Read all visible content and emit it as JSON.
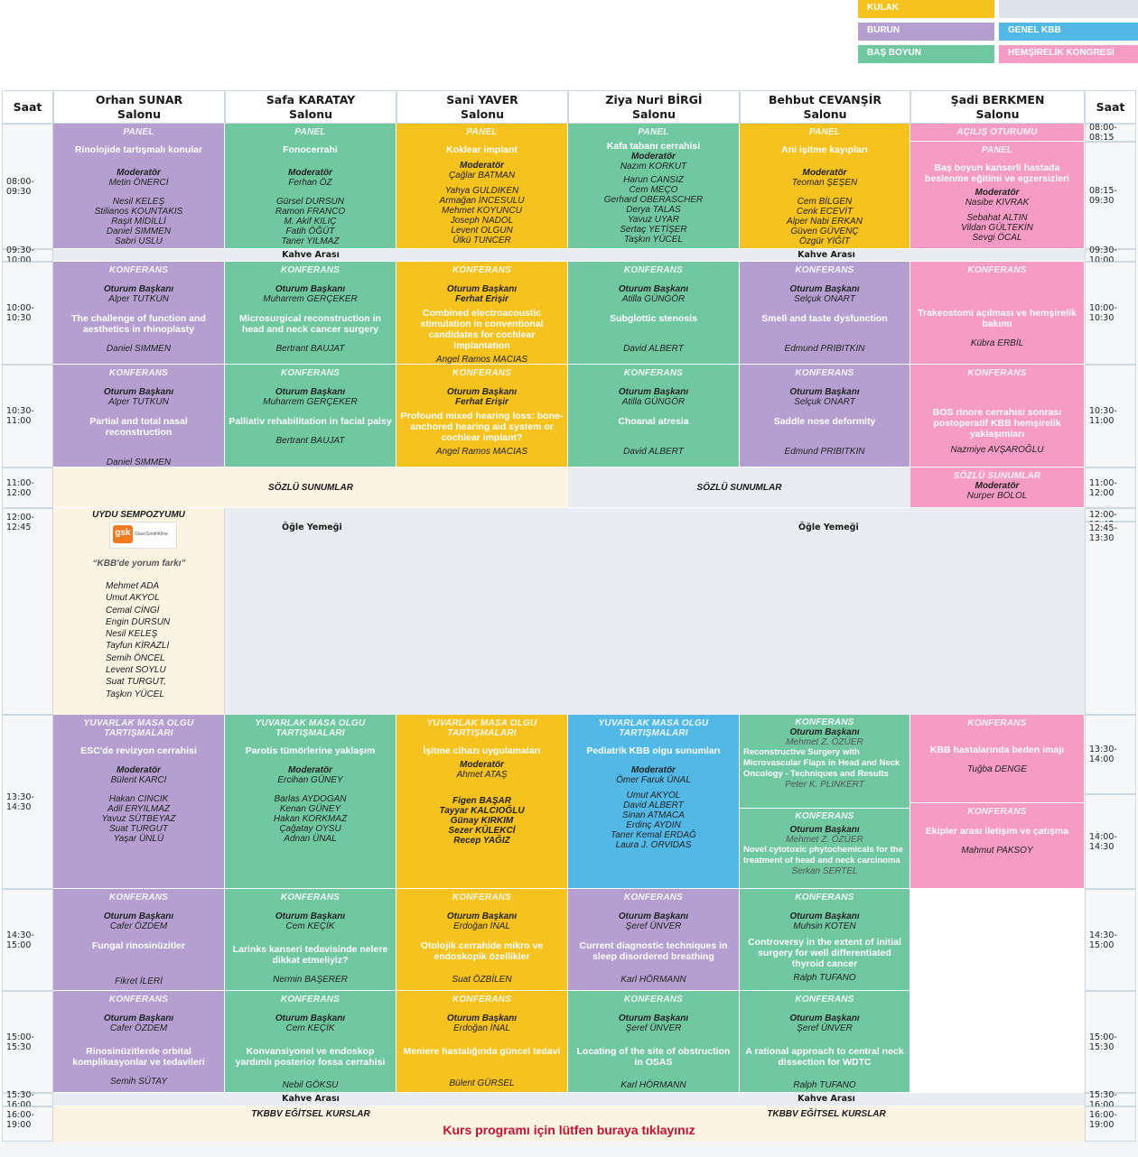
{
  "legend": {
    "kulak": "KULAK",
    "burun": "BURUN",
    "bas_boyun": "BAŞ BOYUN",
    "genel_kbb": "GENEL KBB",
    "hemsirelik": "HEMŞİRELİK KONGRESİ",
    "colors": {
      "kulak": "#f6c21e",
      "burun": "#b59fd0",
      "bas_boyun": "#6fc8a0",
      "genel_kbb": "#52b9e6",
      "hemsirelik": "#f59bc4",
      "blank": "#dde3ea"
    }
  },
  "header": {
    "saat": "Saat",
    "halls": [
      [
        "Orhan SUNAR",
        "Salonu"
      ],
      [
        "Safa KARATAY",
        "Salonu"
      ],
      [
        "Sani YAVER",
        "Salonu"
      ],
      [
        "Ziya Nuri BİRGİ",
        "Salonu"
      ],
      [
        "Behbut CEVANŞİR",
        "Salonu"
      ],
      [
        "Şadi BERKMEN",
        "Salonu"
      ]
    ]
  },
  "times_left": [
    "08:00-09:30",
    "09:30-10:00",
    "10:00-10:30",
    "10:30-11:00",
    "11:00-12:00",
    "12:00-12:45",
    "13:30-14:30",
    "14:30-15:00",
    "15:00-15:30",
    "15:30-16:00",
    "16:00-19:00"
  ],
  "times_right": [
    "08:00-08:15",
    "08:15-09:30",
    "09:30-10:00",
    "10:00-10:30",
    "10:30-11:00",
    "11:00-12:00",
    "12:00-12:45",
    "12:45-13:30",
    "13:30-14:00",
    "14:00-14:30",
    "14:30-15:00",
    "15:00-15:30",
    "15:30-16:00",
    "16:00-19:00"
  ],
  "breaks": {
    "kahve": "Kahve Arası",
    "ogle": "Öğle Yemeği",
    "sozlu": "SÖZLÜ SUNUMLAR",
    "kurslar": "TKBBV EĞİTSEL KURSLAR",
    "kurs_link": "Kurs programı için lütfen buraya tıklayınız"
  },
  "s1": {
    "c1": {
      "tag": "PANEL",
      "title": "Rinolojide tartışmalı konular",
      "mod": "Moderatör",
      "modname": "Metin ÖNERCİ",
      "names": [
        "Nesil KELEŞ",
        "Stilianos KOUNTAKIS",
        "Raşit MİDİLLİ",
        "Daniel SIMMEN",
        "Sabri USLU"
      ]
    },
    "c2": {
      "tag": "PANEL",
      "title": "Fonocerrahi",
      "mod": "Moderatör",
      "modname": "Ferhan ÖZ",
      "names": [
        "Gürsel DURSUN",
        "Ramon FRANCO",
        "M. Akif KILIÇ",
        "Fatih ÖĞÜT",
        "Taner YILMAZ"
      ]
    },
    "c3": {
      "tag": "PANEL",
      "title": "Koklear implant",
      "mod": "Moderatör",
      "modname": "Çağlar BATMAN",
      "names": [
        "Yahya GULDIKEN",
        "Armağan İNCESULU",
        "Mehmet KOYUNCU",
        "Joseph NADOL",
        "Levent OLGUN",
        "Ülkü TUNCER"
      ]
    },
    "c4": {
      "tag": "PANEL",
      "title": "Kafa tabanı cerrahisi",
      "mod": "Moderatör",
      "names": [
        "Nazım KORKUT",
        "Harun CANSIZ",
        "Cem MEÇO",
        "Gerhard OBERASCHER",
        "Derya TALAS",
        "Yavuz UYAR",
        "Sertaç YETİŞER",
        "Taşkın YÜCEL"
      ]
    },
    "c5": {
      "tag": "PANEL",
      "title": "Ani işitme kayıpları",
      "mod": "Moderatör",
      "modname": "Teoman ŞEŞEN",
      "names": [
        "Cem BİLGEN",
        "Cenk ECEVİT",
        "Alper Nabi ERKAN",
        "Güven GÜVENÇ",
        "Özgür YİĞİT"
      ]
    },
    "c6a": {
      "tag": "AÇILIŞ OTURUMU"
    },
    "c6": {
      "tag": "PANEL",
      "title": "Baş boyun kanserli hastada beslenme eğitimi ve egzersizleri",
      "mod": "Moderatör",
      "modname": "Nasibe KIVRAK",
      "names": [
        "Sebahat ALTIN",
        "Vildan GÜLTEKİN",
        "Sevgi ÖCAL"
      ]
    }
  },
  "s2": {
    "c1": {
      "tag": "KONFERANS",
      "chair": "Oturum Başkanı",
      "chairname": "Alper TUTKUN",
      "title": "The challenge of function and aesthetics in rhinoplasty",
      "speaker": "Daniel SIMMEN"
    },
    "c2": {
      "tag": "KONFERANS",
      "chair": "Oturum Başkanı",
      "chairname": "Muharrem GERÇEKER",
      "title": "Microsurgical reconstruction in head and neck cancer surgery",
      "speaker": "Bertrant BAUJAT"
    },
    "c3": {
      "tag": "KONFERANS",
      "chair": "Oturum Başkanı",
      "chairname": "Ferhat Erişir",
      "title": "Combined electroacoustic stimulation in conventional candidates for cochlear implantation",
      "speaker": "Angel Ramos MACIAS"
    },
    "c4": {
      "tag": "KONFERANS",
      "chair": "Oturum Başkanı",
      "chairname": "Atilla GÜNGÖR",
      "title": "Subglottic stenosis",
      "speaker": "David ALBERT"
    },
    "c5": {
      "tag": "KONFERANS",
      "chair": "Oturum Başkanı",
      "chairname": "Selçuk ONART",
      "title": "Smell and taste dysfunction",
      "speaker": "Edmund PRIBITKIN"
    },
    "c6": {
      "tag": "KONFERANS",
      "title": "Trakeostomi açılması ve hemşirelik bakımı",
      "speaker": "Kübra ERBİL"
    }
  },
  "s3": {
    "c1": {
      "tag": "KONFERANS",
      "chair": "Oturum Başkanı",
      "chairname": "Alper TUTKUN",
      "title": "Partial and total nasal reconstruction",
      "speaker": "Daniel SIMMEN"
    },
    "c2": {
      "tag": "KONFERANS",
      "chair": "Oturum Başkanı",
      "chairname": "Muharrem GERÇEKER",
      "title": "Palliativ rehabilitation in facial palsy",
      "speaker": "Bertrant BAUJAT"
    },
    "c3": {
      "tag": "KONFERANS",
      "chair": "Oturum Başkanı",
      "chairname": "Ferhat Erişir",
      "title": "Profound mixed hearing loss: bone-anchored hearing aid system or cochlear implant?",
      "speaker": "Angel Ramos MACIAS"
    },
    "c4": {
      "tag": "KONFERANS",
      "chair": "Oturum Başkanı",
      "chairname": "Atilla GÜNGÖR",
      "title": "Choanal atresia",
      "speaker": "David ALBERT"
    },
    "c5": {
      "tag": "KONFERANS",
      "chair": "Oturum Başkanı",
      "chairname": "Selçuk ONART",
      "title": "Saddle nose deformity",
      "speaker": "Edmund PRIBITKIN"
    },
    "c6": {
      "tag": "KONFERANS",
      "title": "BOS rinore cerrahisi sonrası postoperatif KBB hemşirelik yaklaşımları",
      "speaker": "Nazmiye AVŞAROĞLU"
    }
  },
  "s4": {
    "c6": {
      "tag": "SÖZLÜ SUNUMLAR",
      "mod": "Moderatör",
      "modname": "Nurper BOLOL"
    }
  },
  "uydu": {
    "title": "UYDU SEMPOZYUMU",
    "logo_mark": "gsk",
    "logo_text": "GlaxoSmithKline",
    "quote": "“KBB'de yorum farkı”",
    "names": [
      "Mehmet ADA",
      "Umut AKYOL",
      "Cemal CİNGİ",
      "Engin DURSUN",
      "Nesil KELEŞ",
      "Tayfun KİRAZLI",
      "Semih ÖNCEL",
      "Levent SOYLU",
      "Suat TURGUT,",
      "Taşkın YÜCEL"
    ]
  },
  "s5": {
    "c1": {
      "tag": "YUVARLAK MASA OLGU TARTIŞMALARI",
      "title": "ESC'de revizyon cerrahisi",
      "mod": "Moderatör",
      "modname": "Bülent KARCI",
      "names": [
        "Hakan  CINCIK",
        "Adil ERYILMAZ",
        "Yavuz SÜTBEYAZ",
        "Suat TURGUT",
        "Yaşar ÜNLÜ"
      ]
    },
    "c2": {
      "tag": "YUVARLAK MASA OLGU TARTIŞMALARI",
      "title": "Parotis tümörlerine yaklaşım",
      "mod": "Moderatör",
      "modname": "Ercihan GÜNEY",
      "names": [
        "Barlas AYDOGAN",
        "Kenan GÜNEY",
        "Hakan KORKMAZ",
        "Çağatay OYSU",
        "Adnan ÜNAL"
      ]
    },
    "c3": {
      "tag": "YUVARLAK MASA OLGU TARTIŞMALARI",
      "title": "İşitme cihazı uygulamaları",
      "mod": "Moderatör",
      "modname": "Ahmet ATAŞ",
      "names": [
        "Figen BAŞAR",
        "Tayyar KALCIOĞLU",
        "Günay KIRKIM",
        "Sezer KÜLEKCİ",
        "Recep YAĞIZ"
      ]
    },
    "c4": {
      "tag": "YUVARLAK MASA OLGU TARTIŞMALARI",
      "title": "Pediatrik KBB olgu sunumları",
      "mod": "Moderatör",
      "modname": "Ömer Faruk ÜNAL",
      "names": [
        "Umut AKYOL",
        "David ALBERT",
        "Sinan ATMACA",
        "Erdinç AYDIN",
        "Taner Kemal ERDAĞ",
        "Laura J. ORVIDAS"
      ]
    },
    "c5a": {
      "tag": "KONFERANS",
      "chair": "Oturum Başkanı",
      "chairname": "Mehmet Z. ÖZÜER",
      "title": "Reconstructive Surgery with Microvascular Flaps in Head and Neck Oncology - Techniques and Results",
      "speaker": "Peter K. PLINKERT"
    },
    "c5b": {
      "tag": "KONFERANS",
      "chair": "Oturum Başkanı",
      "chairname": "Mehmet Z. ÖZÜER",
      "title": "Novel cytotoxic phytochemicals for the treatment of head and neck carcinoma",
      "speaker": "Serkan SERTEL"
    },
    "c6a": {
      "tag": "KONFERANS",
      "title": "KBB hastalarında beden imajı",
      "speaker": "Tuğba DENGE"
    },
    "c6b": {
      "tag": "KONFERANS",
      "title": "Ekipler arası iletişim ve çatışma",
      "speaker": "Mahmut PAKSOY"
    }
  },
  "s6": {
    "c1": {
      "tag": "KONFERANS",
      "chair": "Oturum Başkanı",
      "chairname": "Cafer ÖZDEM",
      "title": "Fungal rinosinüzitler",
      "speaker": "Fikret İLERİ"
    },
    "c2": {
      "tag": "KONFERANS",
      "chair": "Oturum Başkanı",
      "chairname": "Cem KEÇİK",
      "title": "Larinks kanseri tedavisinde nelere dikkat etmeliyiz?",
      "speaker": "Nermin BAŞERER"
    },
    "c3": {
      "tag": "KONFERANS",
      "chair": "Oturum Başkanı",
      "chairname": "Erdoğan İNAL",
      "title": "Otolojik cerrahide mikro ve endoskopik özellikler",
      "speaker": "Suat ÖZBİLEN"
    },
    "c4": {
      "tag": "KONFERANS",
      "chair": "Oturum Başkanı",
      "chairname": "Şeref ÜNVER",
      "title": "Current diagnostic techniques in sleep disordered breathing",
      "speaker": "Karl HÖRMANN"
    },
    "c5": {
      "tag": "KONFERANS",
      "chair": "Oturum Başkanı",
      "chairname": "Muhsin KOTEN",
      "title": "Controversy in the extent of initial surgery for well differentiated thyroid cancer",
      "speaker": "Ralph TUFANO"
    }
  },
  "s7": {
    "c1": {
      "tag": "KONFERANS",
      "chair": "Oturum Başkanı",
      "chairname": "Cafer ÖZDEM",
      "title": "Rinosinüzitlerde orbital komplikasyonlar ve tedavileri",
      "speaker": "Semih SÜTAY"
    },
    "c2": {
      "tag": "KONFERANS",
      "chair": "Oturum Başkanı",
      "chairname": "Cem KEÇİK",
      "title": "Konvansiyonel ve endoskop yardımlı posterior fossa cerrahisi",
      "speaker": "Nebil GÖKSU"
    },
    "c3": {
      "tag": "KONFERANS",
      "chair": "Oturum Başkanı",
      "chairname": "Erdoğan İNAL",
      "title": "Meniere hastalığında güncel tedavi",
      "speaker": "Bülent GÜRSEL"
    },
    "c4": {
      "tag": "KONFERANS",
      "chair": "Oturum Başkanı",
      "chairname": "Şeref ÜNVER",
      "title": "Locating of the site of obstruction in OSAS",
      "speaker": "Karl HÖRMANN"
    },
    "c5": {
      "tag": "KONFERANS",
      "chair": "Oturum Başkanı",
      "chairname": "Şeref ÜNVER",
      "title": "A rational approach to central neck dissection for WDTC",
      "speaker": "Ralph TUFANO"
    }
  }
}
